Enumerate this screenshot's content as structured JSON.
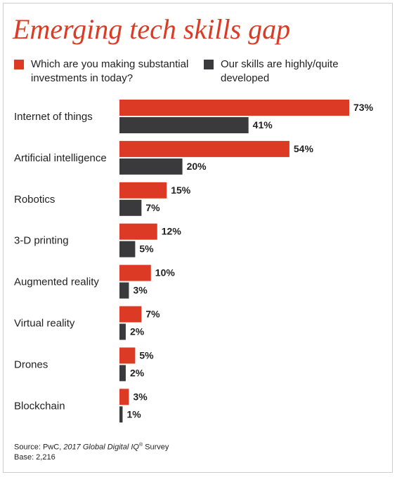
{
  "chart_data": {
    "type": "bar",
    "orientation": "horizontal",
    "title": "Emerging tech skills gap",
    "categories": [
      "Internet of things",
      "Artificial intelligence",
      "Robotics",
      "3-D printing",
      "Augmented reality",
      "Virtual reality",
      "Drones",
      "Blockchain"
    ],
    "series": [
      {
        "name": "Which are you making substantial investments in today?",
        "values": [
          73,
          54,
          15,
          12,
          10,
          7,
          5,
          3
        ],
        "color": "#dc3a24"
      },
      {
        "name": "Our skills are highly/quite developed",
        "values": [
          41,
          20,
          7,
          5,
          3,
          2,
          2,
          1
        ],
        "color": "#3a3a3c"
      }
    ],
    "value_suffix": "%",
    "xlim": [
      0,
      73
    ],
    "grid": false,
    "legend_position": "top"
  },
  "footer": {
    "source_prefix": "Source: PwC, ",
    "source_italic": "2017 Global Digital IQ",
    "source_mark": "®",
    "source_suffix": " Survey",
    "base": "Base: 2,216"
  }
}
